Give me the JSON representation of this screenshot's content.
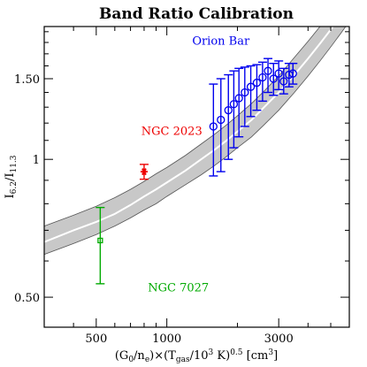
{
  "chart_data": {
    "type": "scatter",
    "title": "Band Ratio Calibration",
    "xlabel": "(G0/ne)×(Tgas/10³ K)^0.5 [cm³]",
    "ylabel": "I6.2/I11.3",
    "x_scale": "log",
    "y_scale": "log",
    "xlim": [
      300,
      6000
    ],
    "ylim": [
      0.43,
      1.95
    ],
    "x_ticks": [
      {
        "value": 500,
        "label": "500"
      },
      {
        "value": 1000,
        "label": "1000"
      },
      {
        "value": 3000,
        "label": "3000"
      }
    ],
    "y_ticks": [
      {
        "value": 0.5,
        "label": "0.50"
      },
      {
        "value": 1,
        "label": "1"
      },
      {
        "value": 1.5,
        "label": "1.50"
      }
    ],
    "calibration": {
      "x": [
        300,
        400,
        500,
        600,
        700,
        800,
        900,
        1000,
        1200,
        1400,
        1600,
        1800,
        2000,
        2300,
        2600,
        3000,
        3500,
        4000,
        4500,
        5000,
        5500,
        6000
      ],
      "center": [
        0.66,
        0.7,
        0.73,
        0.76,
        0.795,
        0.83,
        0.86,
        0.89,
        0.945,
        1.0,
        1.05,
        1.1,
        1.15,
        1.22,
        1.3,
        1.4,
        1.53,
        1.66,
        1.79,
        1.92,
        2.05,
        2.18
      ],
      "lower": [
        0.62,
        0.655,
        0.685,
        0.715,
        0.745,
        0.775,
        0.8,
        0.83,
        0.88,
        0.925,
        0.97,
        1.015,
        1.06,
        1.12,
        1.19,
        1.28,
        1.4,
        1.52,
        1.64,
        1.76,
        1.88,
        2.0
      ],
      "upper": [
        0.715,
        0.755,
        0.79,
        0.825,
        0.86,
        0.895,
        0.93,
        0.96,
        1.02,
        1.08,
        1.135,
        1.19,
        1.245,
        1.325,
        1.41,
        1.52,
        1.67,
        1.81,
        1.95,
        2.09,
        2.23,
        2.37
      ],
      "band_color": "#c8c8c8",
      "line_color": "#ffffff"
    },
    "objects": [
      {
        "name": "Orion Bar",
        "color": "#0000ee",
        "marker": "circle",
        "label_at": [
          1700,
          1.78
        ],
        "points": [
          {
            "x": 1580,
            "y": 1.18,
            "lo": 0.92,
            "hi": 1.46
          },
          {
            "x": 1700,
            "y": 1.22,
            "lo": 0.94,
            "hi": 1.5
          },
          {
            "x": 1830,
            "y": 1.28,
            "lo": 1.0,
            "hi": 1.53
          },
          {
            "x": 1930,
            "y": 1.32,
            "lo": 1.06,
            "hi": 1.56
          },
          {
            "x": 2030,
            "y": 1.36,
            "lo": 1.12,
            "hi": 1.58
          },
          {
            "x": 2150,
            "y": 1.4,
            "lo": 1.18,
            "hi": 1.59
          },
          {
            "x": 2280,
            "y": 1.44,
            "lo": 1.24,
            "hi": 1.6
          },
          {
            "x": 2420,
            "y": 1.47,
            "lo": 1.28,
            "hi": 1.61
          },
          {
            "x": 2560,
            "y": 1.51,
            "lo": 1.34,
            "hi": 1.63
          },
          {
            "x": 2700,
            "y": 1.56,
            "lo": 1.4,
            "hi": 1.66
          },
          {
            "x": 2850,
            "y": 1.5,
            "lo": 1.38,
            "hi": 1.62
          },
          {
            "x": 3000,
            "y": 1.54,
            "lo": 1.42,
            "hi": 1.64
          },
          {
            "x": 3150,
            "y": 1.48,
            "lo": 1.39,
            "hi": 1.58
          },
          {
            "x": 3320,
            "y": 1.53,
            "lo": 1.44,
            "hi": 1.62
          },
          {
            "x": 3450,
            "y": 1.54,
            "lo": 1.46,
            "hi": 1.62
          }
        ]
      },
      {
        "name": "NGC 2023",
        "color": "#ee0000",
        "marker": "asterisk",
        "label_at": [
          1050,
          1.13
        ],
        "points": [
          {
            "x": 800,
            "y": 0.94,
            "lo": 0.905,
            "hi": 0.975
          }
        ]
      },
      {
        "name": "NGC 7027",
        "color": "#00aa00",
        "marker": "square",
        "label_at": [
          1120,
          0.515
        ],
        "points": [
          {
            "x": 520,
            "y": 0.665,
            "lo": 0.535,
            "hi": 0.785
          }
        ]
      }
    ]
  }
}
